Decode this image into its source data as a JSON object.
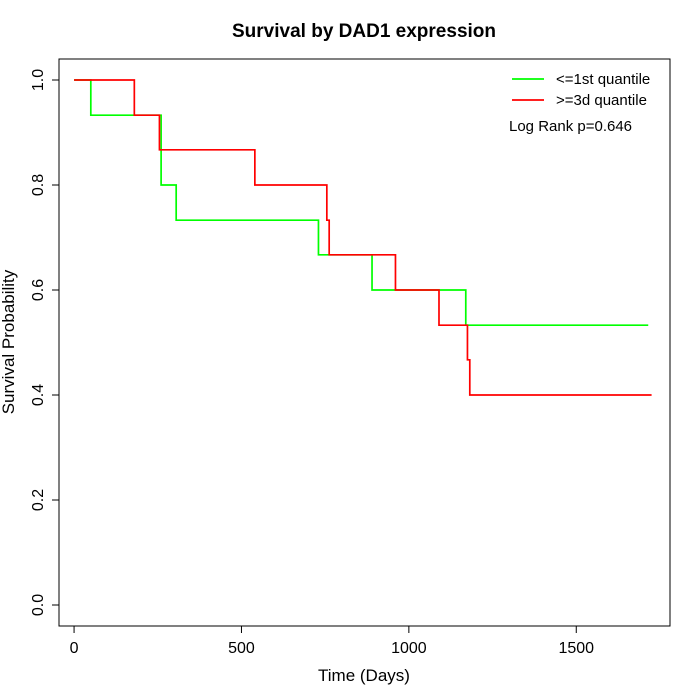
{
  "chart_data": {
    "type": "line",
    "title": "Survival by DAD1 expression",
    "xlabel": "Time (Days)",
    "ylabel": "Survival Probability",
    "xlim": [
      -45,
      1780
    ],
    "ylim": [
      -0.04,
      1.04
    ],
    "xticks": [
      "0",
      "500",
      "1000",
      "1500"
    ],
    "xtick_values": [
      0,
      500,
      1000,
      1500
    ],
    "yticks": [
      "0.0",
      "0.2",
      "0.4",
      "0.6",
      "0.8",
      "1.0"
    ],
    "ytick_values": [
      0,
      0.2,
      0.4,
      0.6,
      0.8,
      1.0
    ],
    "grid": false,
    "legend_position": "top-right",
    "annotation": "Log Rank p=0.646",
    "series": [
      {
        "name": "<=1st quantile",
        "color": "#00ff00",
        "step_x": [
          0,
          50,
          260,
          305,
          730,
          890,
          1170,
          1715
        ],
        "step_y": [
          1.0,
          0.933,
          0.8,
          0.733,
          0.667,
          0.6,
          0.533,
          0.533
        ]
      },
      {
        "name": ">=3d quantile",
        "color": "#ff0000",
        "step_x": [
          0,
          180,
          255,
          540,
          755,
          762,
          960,
          1090,
          1175,
          1182,
          1725
        ],
        "step_y": [
          1.0,
          0.933,
          0.867,
          0.8,
          0.733,
          0.667,
          0.6,
          0.533,
          0.467,
          0.4,
          0.4
        ]
      }
    ]
  }
}
